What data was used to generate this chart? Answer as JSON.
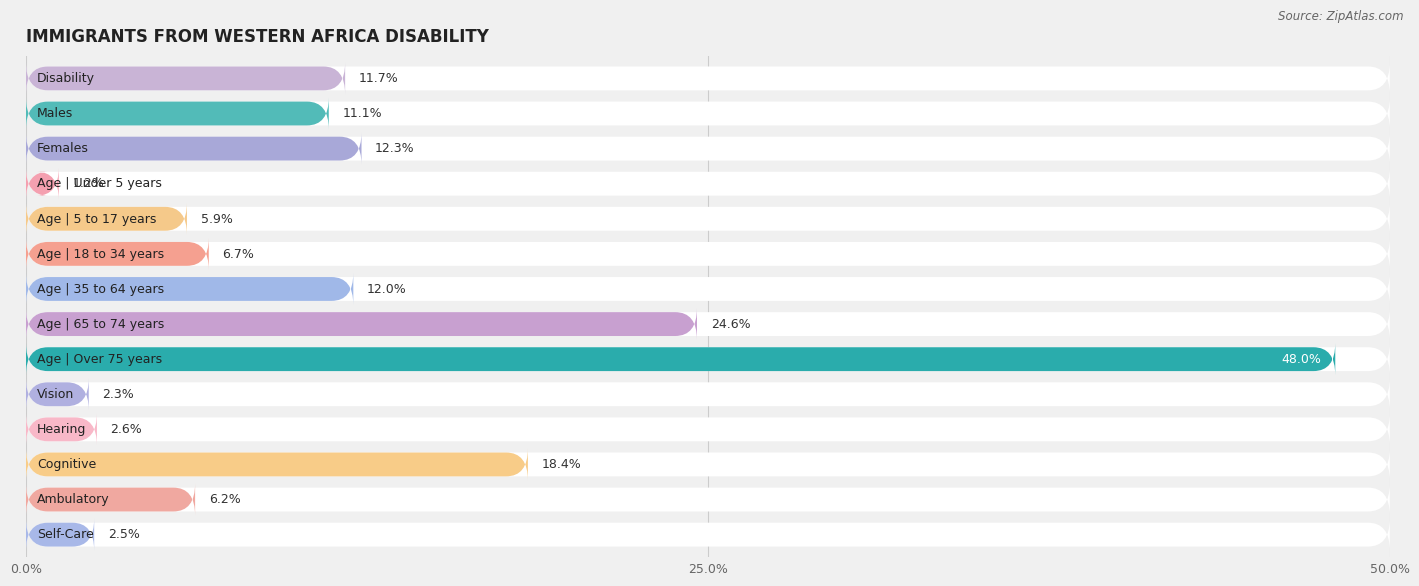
{
  "title": "IMMIGRANTS FROM WESTERN AFRICA DISABILITY",
  "source": "Source: ZipAtlas.com",
  "categories": [
    "Disability",
    "Males",
    "Females",
    "Age | Under 5 years",
    "Age | 5 to 17 years",
    "Age | 18 to 34 years",
    "Age | 35 to 64 years",
    "Age | 65 to 74 years",
    "Age | Over 75 years",
    "Vision",
    "Hearing",
    "Cognitive",
    "Ambulatory",
    "Self-Care"
  ],
  "values": [
    11.7,
    11.1,
    12.3,
    1.2,
    5.9,
    6.7,
    12.0,
    24.6,
    48.0,
    2.3,
    2.6,
    18.4,
    6.2,
    2.5
  ],
  "bar_colors": [
    "#c9b4d6",
    "#52bbb8",
    "#a8a8d8",
    "#f4a0b0",
    "#f5c98a",
    "#f5a090",
    "#a0b8e8",
    "#c8a0d0",
    "#2aacac",
    "#b0b0e0",
    "#f8b8c8",
    "#f8cc88",
    "#f0a8a0",
    "#a8b8e8"
  ],
  "xlim": [
    0,
    50
  ],
  "xticks": [
    0.0,
    25.0,
    50.0
  ],
  "xtick_labels": [
    "0.0%",
    "25.0%",
    "50.0%"
  ],
  "background_color": "#f0f0f0",
  "bar_bg_color": "#ffffff",
  "label_fontsize": 9,
  "title_fontsize": 12,
  "value_fontsize": 9
}
